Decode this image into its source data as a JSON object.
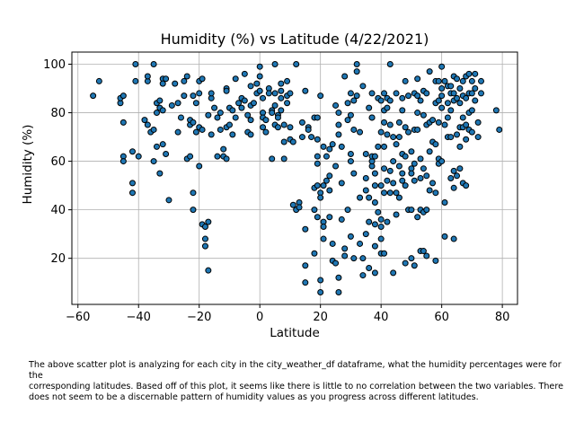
{
  "chart_data": {
    "type": "scatter",
    "title": "Humidity (%) vs Latitude (4/22/2021)",
    "xlabel": "Latitude",
    "ylabel": "Humidity (%)",
    "xlim": [
      -62,
      85
    ],
    "ylim": [
      1,
      105
    ],
    "xticks": [
      -60,
      -40,
      -20,
      0,
      20,
      40,
      60,
      80
    ],
    "yticks": [
      20,
      40,
      60,
      80,
      100
    ],
    "grid": true,
    "marker_color": "#1f77b4",
    "marker_edge": "#000000",
    "points": [
      [
        -55,
        87
      ],
      [
        -53,
        93
      ],
      [
        -46,
        84
      ],
      [
        -46,
        86
      ],
      [
        -45,
        87
      ],
      [
        -45,
        76
      ],
      [
        -45,
        62
      ],
      [
        -45,
        60
      ],
      [
        -42,
        51
      ],
      [
        -42,
        47
      ],
      [
        -42,
        64
      ],
      [
        -41,
        93
      ],
      [
        -41,
        100
      ],
      [
        -40,
        62
      ],
      [
        -38,
        77
      ],
      [
        -37,
        93
      ],
      [
        -37,
        95
      ],
      [
        -37,
        75
      ],
      [
        -36,
        72
      ],
      [
        -35,
        100
      ],
      [
        -35,
        73
      ],
      [
        -35,
        60
      ],
      [
        -34,
        84
      ],
      [
        -34,
        80
      ],
      [
        -34,
        66
      ],
      [
        -33,
        55
      ],
      [
        -33,
        82
      ],
      [
        -33,
        85
      ],
      [
        -32,
        94
      ],
      [
        -32,
        92
      ],
      [
        -32,
        81
      ],
      [
        -32,
        67
      ],
      [
        -31,
        94
      ],
      [
        -31,
        63
      ],
      [
        -30,
        44
      ],
      [
        -29,
        83
      ],
      [
        -28,
        92
      ],
      [
        -27,
        84
      ],
      [
        -27,
        72
      ],
      [
        -26,
        78
      ],
      [
        -25,
        87
      ],
      [
        -25,
        93
      ],
      [
        -24,
        95
      ],
      [
        -24,
        61
      ],
      [
        -23,
        75
      ],
      [
        -23,
        77
      ],
      [
        -23,
        62
      ],
      [
        -22,
        76
      ],
      [
        -22,
        47
      ],
      [
        -22,
        87
      ],
      [
        -22,
        40
      ],
      [
        -21,
        72
      ],
      [
        -21,
        84
      ],
      [
        -20,
        88
      ],
      [
        -20,
        93
      ],
      [
        -20,
        74
      ],
      [
        -20,
        58
      ],
      [
        -19,
        73
      ],
      [
        -19,
        94
      ],
      [
        -19,
        34
      ],
      [
        -18,
        33
      ],
      [
        -18,
        28
      ],
      [
        -18,
        25
      ],
      [
        -17,
        35
      ],
      [
        -17,
        15
      ],
      [
        -17,
        79
      ],
      [
        -16,
        86
      ],
      [
        -16,
        88
      ],
      [
        -16,
        71
      ],
      [
        -15,
        82
      ],
      [
        -14,
        62
      ],
      [
        -14,
        78
      ],
      [
        -13,
        73
      ],
      [
        -13,
        80
      ],
      [
        -12,
        65
      ],
      [
        -12,
        62
      ],
      [
        -11,
        90
      ],
      [
        -11,
        89
      ],
      [
        -11,
        74
      ],
      [
        -11,
        61
      ],
      [
        -10,
        82
      ],
      [
        -10,
        75
      ],
      [
        -9,
        81
      ],
      [
        -9,
        71
      ],
      [
        -8,
        78
      ],
      [
        -8,
        94
      ],
      [
        -7,
        84
      ],
      [
        -6,
        86
      ],
      [
        -6,
        82
      ],
      [
        -5,
        96
      ],
      [
        -5,
        85
      ],
      [
        -4,
        79
      ],
      [
        -4,
        72
      ],
      [
        -3,
        91
      ],
      [
        -3,
        83
      ],
      [
        -3,
        77
      ],
      [
        -3,
        71
      ],
      [
        -2,
        84
      ],
      [
        -1,
        88
      ],
      [
        -1,
        92
      ],
      [
        0,
        99
      ],
      [
        0,
        95
      ],
      [
        0,
        89
      ],
      [
        1,
        80
      ],
      [
        1,
        86
      ],
      [
        1,
        78
      ],
      [
        1,
        74
      ],
      [
        2,
        77
      ],
      [
        2,
        72
      ],
      [
        3,
        90
      ],
      [
        3,
        88
      ],
      [
        4,
        81
      ],
      [
        4,
        80
      ],
      [
        4,
        61
      ],
      [
        5,
        75
      ],
      [
        5,
        100
      ],
      [
        5,
        88
      ],
      [
        5,
        83
      ],
      [
        6,
        79
      ],
      [
        6,
        78
      ],
      [
        6,
        74
      ],
      [
        7,
        81
      ],
      [
        7,
        86
      ],
      [
        7,
        89
      ],
      [
        7,
        92
      ],
      [
        8,
        75
      ],
      [
        8,
        68
      ],
      [
        8,
        61
      ],
      [
        9,
        87
      ],
      [
        9,
        84
      ],
      [
        9,
        93
      ],
      [
        10,
        88
      ],
      [
        10,
        74
      ],
      [
        10,
        69
      ],
      [
        11,
        42
      ],
      [
        11,
        68
      ],
      [
        12,
        100
      ],
      [
        12,
        40
      ],
      [
        13,
        43
      ],
      [
        13,
        41
      ],
      [
        14,
        76
      ],
      [
        14,
        70
      ],
      [
        15,
        17
      ],
      [
        15,
        10
      ],
      [
        15,
        32
      ],
      [
        15,
        89
      ],
      [
        16,
        74
      ],
      [
        16,
        73
      ],
      [
        17,
        70
      ],
      [
        18,
        40
      ],
      [
        18,
        49
      ],
      [
        18,
        78
      ],
      [
        18,
        22
      ],
      [
        19,
        78
      ],
      [
        19,
        69
      ],
      [
        19,
        50
      ],
      [
        19,
        59
      ],
      [
        19,
        62
      ],
      [
        19,
        37
      ],
      [
        20,
        47
      ],
      [
        20,
        45
      ],
      [
        20,
        87
      ],
      [
        20,
        11
      ],
      [
        20,
        6
      ],
      [
        21,
        35
      ],
      [
        21,
        28
      ],
      [
        21,
        33
      ],
      [
        21,
        50
      ],
      [
        21,
        66
      ],
      [
        22,
        62
      ],
      [
        22,
        52
      ],
      [
        23,
        65
      ],
      [
        23,
        54
      ],
      [
        23,
        48
      ],
      [
        23,
        37
      ],
      [
        24,
        26
      ],
      [
        24,
        19
      ],
      [
        24,
        67
      ],
      [
        25,
        58
      ],
      [
        25,
        18
      ],
      [
        25,
        83
      ],
      [
        26,
        80
      ],
      [
        26,
        75
      ],
      [
        26,
        71
      ],
      [
        26,
        12
      ],
      [
        26,
        6
      ],
      [
        27,
        66
      ],
      [
        27,
        51
      ],
      [
        27,
        36
      ],
      [
        28,
        95
      ],
      [
        28,
        24
      ],
      [
        28,
        21
      ],
      [
        29,
        40
      ],
      [
        29,
        77
      ],
      [
        29,
        84
      ],
      [
        30,
        29
      ],
      [
        30,
        60
      ],
      [
        30,
        79
      ],
      [
        30,
        88
      ],
      [
        30,
        63
      ],
      [
        31,
        55
      ],
      [
        31,
        20
      ],
      [
        31,
        73
      ],
      [
        31,
        85
      ],
      [
        32,
        87
      ],
      [
        32,
        97
      ],
      [
        32,
        100
      ],
      [
        33,
        72
      ],
      [
        33,
        45
      ],
      [
        33,
        26
      ],
      [
        34,
        13
      ],
      [
        34,
        20
      ],
      [
        34,
        91
      ],
      [
        35,
        63
      ],
      [
        35,
        48
      ],
      [
        35,
        53
      ],
      [
        35,
        30
      ],
      [
        36,
        82
      ],
      [
        36,
        45
      ],
      [
        36,
        35
      ],
      [
        36,
        16
      ],
      [
        37,
        78
      ],
      [
        37,
        58
      ],
      [
        37,
        60
      ],
      [
        37,
        88
      ],
      [
        37,
        78
      ],
      [
        37,
        62
      ],
      [
        38,
        14
      ],
      [
        38,
        55
      ],
      [
        38,
        34
      ],
      [
        38,
        50
      ],
      [
        38,
        62
      ],
      [
        38,
        43
      ],
      [
        38,
        25
      ],
      [
        39,
        86
      ],
      [
        39,
        66
      ],
      [
        39,
        39
      ],
      [
        40,
        85
      ],
      [
        40,
        50
      ],
      [
        40,
        36
      ],
      [
        40,
        28
      ],
      [
        40,
        22
      ],
      [
        40,
        33
      ],
      [
        40,
        72
      ],
      [
        41,
        88
      ],
      [
        41,
        57
      ],
      [
        41,
        81
      ],
      [
        41,
        76
      ],
      [
        41,
        66
      ],
      [
        41,
        47
      ],
      [
        41,
        22
      ],
      [
        42,
        86
      ],
      [
        42,
        82
      ],
      [
        42,
        71
      ],
      [
        42,
        52
      ],
      [
        42,
        35
      ],
      [
        43,
        85
      ],
      [
        43,
        75
      ],
      [
        43,
        56
      ],
      [
        43,
        47
      ],
      [
        43,
        100
      ],
      [
        44,
        70
      ],
      [
        44,
        60
      ],
      [
        44,
        51
      ],
      [
        44,
        14
      ],
      [
        45,
        88
      ],
      [
        45,
        67
      ],
      [
        45,
        47
      ],
      [
        45,
        38
      ],
      [
        46,
        76
      ],
      [
        46,
        58
      ],
      [
        46,
        45
      ],
      [
        46,
        70
      ],
      [
        47,
        86
      ],
      [
        47,
        81
      ],
      [
        47,
        63
      ],
      [
        47,
        55
      ],
      [
        47,
        52
      ],
      [
        48,
        93
      ],
      [
        48,
        74
      ],
      [
        48,
        62
      ],
      [
        48,
        50
      ],
      [
        48,
        18
      ],
      [
        49,
        87
      ],
      [
        49,
        72
      ],
      [
        49,
        40
      ],
      [
        50,
        64
      ],
      [
        50,
        57
      ],
      [
        50,
        55
      ],
      [
        50,
        40
      ],
      [
        50,
        20
      ],
      [
        51,
        88
      ],
      [
        51,
        73
      ],
      [
        51,
        59
      ],
      [
        51,
        52
      ],
      [
        51,
        17
      ],
      [
        52,
        94
      ],
      [
        52,
        87
      ],
      [
        52,
        80
      ],
      [
        52,
        73
      ],
      [
        52,
        37
      ],
      [
        53,
        85
      ],
      [
        53,
        61
      ],
      [
        53,
        53
      ],
      [
        53,
        40
      ],
      [
        53,
        23
      ],
      [
        54,
        89
      ],
      [
        54,
        79
      ],
      [
        54,
        57
      ],
      [
        54,
        39
      ],
      [
        54,
        23
      ],
      [
        55,
        88
      ],
      [
        55,
        75
      ],
      [
        55,
        54
      ],
      [
        55,
        40
      ],
      [
        55,
        21
      ],
      [
        56,
        97
      ],
      [
        56,
        76
      ],
      [
        56,
        64
      ],
      [
        56,
        48
      ],
      [
        57,
        77
      ],
      [
        57,
        68
      ],
      [
        57,
        51
      ],
      [
        58,
        93
      ],
      [
        58,
        84
      ],
      [
        58,
        67
      ],
      [
        58,
        47
      ],
      [
        58,
        19
      ],
      [
        59,
        93
      ],
      [
        59,
        85
      ],
      [
        59,
        76
      ],
      [
        59,
        61
      ],
      [
        59,
        59
      ],
      [
        60,
        99
      ],
      [
        60,
        90
      ],
      [
        60,
        87
      ],
      [
        60,
        82
      ],
      [
        60,
        60
      ],
      [
        61,
        93
      ],
      [
        61,
        75
      ],
      [
        61,
        43
      ],
      [
        61,
        29
      ],
      [
        62,
        91
      ],
      [
        62,
        84
      ],
      [
        62,
        78
      ],
      [
        62,
        70
      ],
      [
        63,
        91
      ],
      [
        63,
        88
      ],
      [
        63,
        81
      ],
      [
        63,
        70
      ],
      [
        63,
        53
      ],
      [
        64,
        95
      ],
      [
        64,
        88
      ],
      [
        64,
        85
      ],
      [
        64,
        56
      ],
      [
        64,
        49
      ],
      [
        64,
        28
      ],
      [
        65,
        94
      ],
      [
        65,
        86
      ],
      [
        65,
        71
      ],
      [
        65,
        54
      ],
      [
        66,
        90
      ],
      [
        66,
        84
      ],
      [
        66,
        74
      ],
      [
        66,
        66
      ],
      [
        66,
        57
      ],
      [
        67,
        93
      ],
      [
        67,
        87
      ],
      [
        67,
        78
      ],
      [
        67,
        74
      ],
      [
        67,
        51
      ],
      [
        68,
        95
      ],
      [
        68,
        86
      ],
      [
        68,
        75
      ],
      [
        68,
        69
      ],
      [
        68,
        50
      ],
      [
        69,
        96
      ],
      [
        69,
        88
      ],
      [
        69,
        80
      ],
      [
        69,
        73
      ],
      [
        70,
        93
      ],
      [
        70,
        81
      ],
      [
        70,
        72
      ],
      [
        70,
        88
      ],
      [
        71,
        96
      ],
      [
        71,
        90
      ],
      [
        71,
        85
      ],
      [
        72,
        76
      ],
      [
        72,
        70
      ],
      [
        73,
        88
      ],
      [
        73,
        93
      ],
      [
        78,
        81
      ],
      [
        79,
        73
      ]
    ]
  },
  "caption": "The above scatter plot is analyzing for each city in the city_weather_df dataframe, what the humidity percentages were for the\ncorresponding latitudes. Based off of this plot, it seems like there is little to no correlation between the two variables. There\ndoes not seem to be a discernable pattern of humidity values as you progress across different latitudes."
}
